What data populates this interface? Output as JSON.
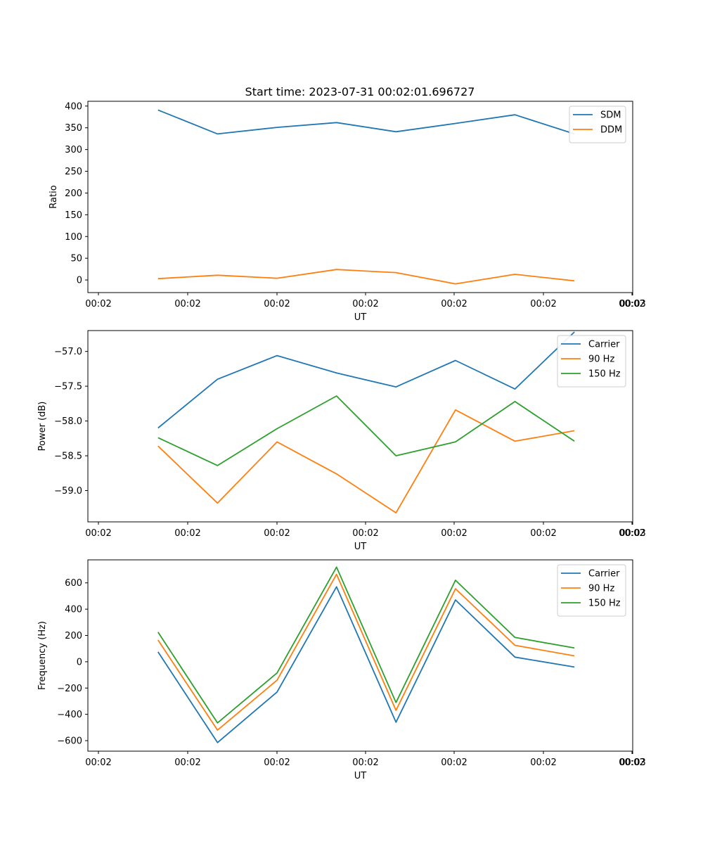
{
  "figure_title": "Start time: 2023-07-31 00:02:01.696727",
  "chart_data": [
    {
      "type": "line",
      "title": "Start time: 2023-07-31 00:02:01.696727",
      "xlabel": "UT",
      "ylabel": "Ratio",
      "x_tick_labels": [
        "00:02",
        "00:02",
        "00:02",
        "00:02",
        "00:02",
        "00:02",
        "00:02",
        "00:03"
      ],
      "x": [
        1,
        2,
        3,
        4,
        5,
        6,
        7,
        8
      ],
      "xlim": [
        -0.18,
        8.98
      ],
      "ylim": [
        -29,
        411
      ],
      "y_ticks": [
        0,
        50,
        100,
        150,
        200,
        250,
        300,
        350,
        400
      ],
      "legend_position": "top-right",
      "series": [
        {
          "name": "SDM",
          "color": "#1f77b4",
          "values": [
            391,
            336,
            351,
            362,
            341,
            360,
            380,
            336
          ]
        },
        {
          "name": "DDM",
          "color": "#ff7f0e",
          "values": [
            3,
            11,
            4,
            24,
            17,
            -9,
            13,
            -2
          ]
        }
      ]
    },
    {
      "type": "line",
      "title": "",
      "xlabel": "UT",
      "ylabel": "Power (dB)",
      "x_tick_labels": [
        "00:02",
        "00:02",
        "00:02",
        "00:02",
        "00:02",
        "00:02",
        "00:02",
        "00:03"
      ],
      "x": [
        1,
        2,
        3,
        4,
        5,
        6,
        7,
        8
      ],
      "xlim": [
        -0.18,
        8.98
      ],
      "ylim": [
        -59.45,
        -56.7
      ],
      "y_ticks": [
        -59.0,
        -58.5,
        -58.0,
        -57.5,
        -57.0
      ],
      "y_tick_labels": [
        "−59.0",
        "−58.5",
        "−58.0",
        "−57.5",
        "−57.0"
      ],
      "legend_position": "top-right",
      "series": [
        {
          "name": "Carrier",
          "color": "#1f77b4",
          "values": [
            -58.1,
            -57.4,
            -57.06,
            -57.31,
            -57.51,
            -57.13,
            -57.54,
            -56.72
          ]
        },
        {
          "name": "90 Hz",
          "color": "#ff7f0e",
          "values": [
            -58.36,
            -59.18,
            -58.3,
            -58.76,
            -59.32,
            -57.84,
            -58.29,
            -58.14
          ]
        },
        {
          "name": "150 Hz",
          "color": "#2ca02c",
          "values": [
            -58.24,
            -58.64,
            -58.11,
            -57.64,
            -58.5,
            -58.3,
            -57.72,
            -58.29
          ]
        }
      ]
    },
    {
      "type": "line",
      "title": "",
      "xlabel": "UT",
      "ylabel": "Frequency (Hz)",
      "x_tick_labels": [
        "00:02",
        "00:02",
        "00:02",
        "00:02",
        "00:02",
        "00:02",
        "00:02",
        "00:03"
      ],
      "x": [
        1,
        2,
        3,
        4,
        5,
        6,
        7,
        8
      ],
      "xlim": [
        -0.18,
        8.98
      ],
      "ylim": [
        -680,
        775
      ],
      "y_ticks": [
        -600,
        -400,
        -200,
        0,
        200,
        400,
        600
      ],
      "y_tick_labels": [
        "−600",
        "−400",
        "−200",
        "0",
        "200",
        "400",
        "600"
      ],
      "legend_position": "top-right",
      "series": [
        {
          "name": "Carrier",
          "color": "#1f77b4",
          "values": [
            75,
            -615,
            -230,
            570,
            -460,
            470,
            35,
            -40
          ]
        },
        {
          "name": "90 Hz",
          "color": "#ff7f0e",
          "values": [
            165,
            -520,
            -140,
            665,
            -370,
            555,
            125,
            45
          ]
        },
        {
          "name": "150 Hz",
          "color": "#2ca02c",
          "values": [
            225,
            -465,
            -85,
            720,
            -310,
            620,
            185,
            105
          ]
        }
      ]
    }
  ]
}
